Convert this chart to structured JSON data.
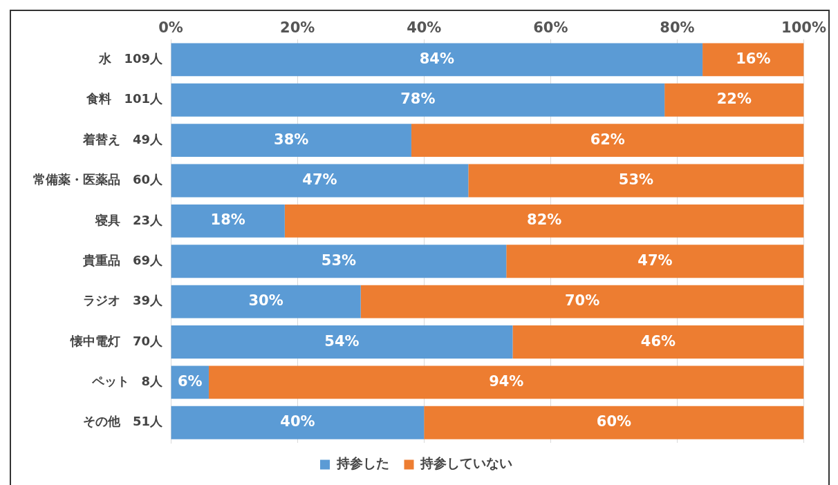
{
  "chart_data": {
    "type": "bar",
    "orientation": "horizontal",
    "stacked": true,
    "categories": [
      "水　109人",
      "食料　101人",
      "着替え　49人",
      "常備薬・医薬品　60人",
      "寝具　23人",
      "貴重品　69人",
      "ラジオ　39人",
      "懐中電灯　70人",
      "ペット　8人",
      "その他　51人"
    ],
    "series": [
      {
        "name": "持参した",
        "color": "#5b9bd5",
        "values": [
          84,
          78,
          38,
          47,
          18,
          53,
          30,
          54,
          6,
          40
        ],
        "value_labels": [
          "84%",
          "78%",
          "38%",
          "47%",
          "18%",
          "53%",
          "30%",
          "54%",
          "6%",
          "40%"
        ]
      },
      {
        "name": "持参していない",
        "color": "#ed7d31",
        "values": [
          16,
          22,
          62,
          53,
          82,
          47,
          70,
          46,
          94,
          60
        ],
        "value_labels": [
          "16%",
          "22%",
          "62%",
          "53%",
          "82%",
          "47%",
          "70%",
          "46%",
          "94%",
          "60%"
        ]
      }
    ],
    "xlim": [
      0,
      100
    ],
    "xticks": [
      {
        "value": 0,
        "label": "0%"
      },
      {
        "value": 20,
        "label": "20%"
      },
      {
        "value": 40,
        "label": "40%"
      },
      {
        "value": 60,
        "label": "60%"
      },
      {
        "value": 80,
        "label": "80%"
      },
      {
        "value": 100,
        "label": "100%"
      }
    ],
    "grid": "x",
    "legend": "bottom"
  }
}
